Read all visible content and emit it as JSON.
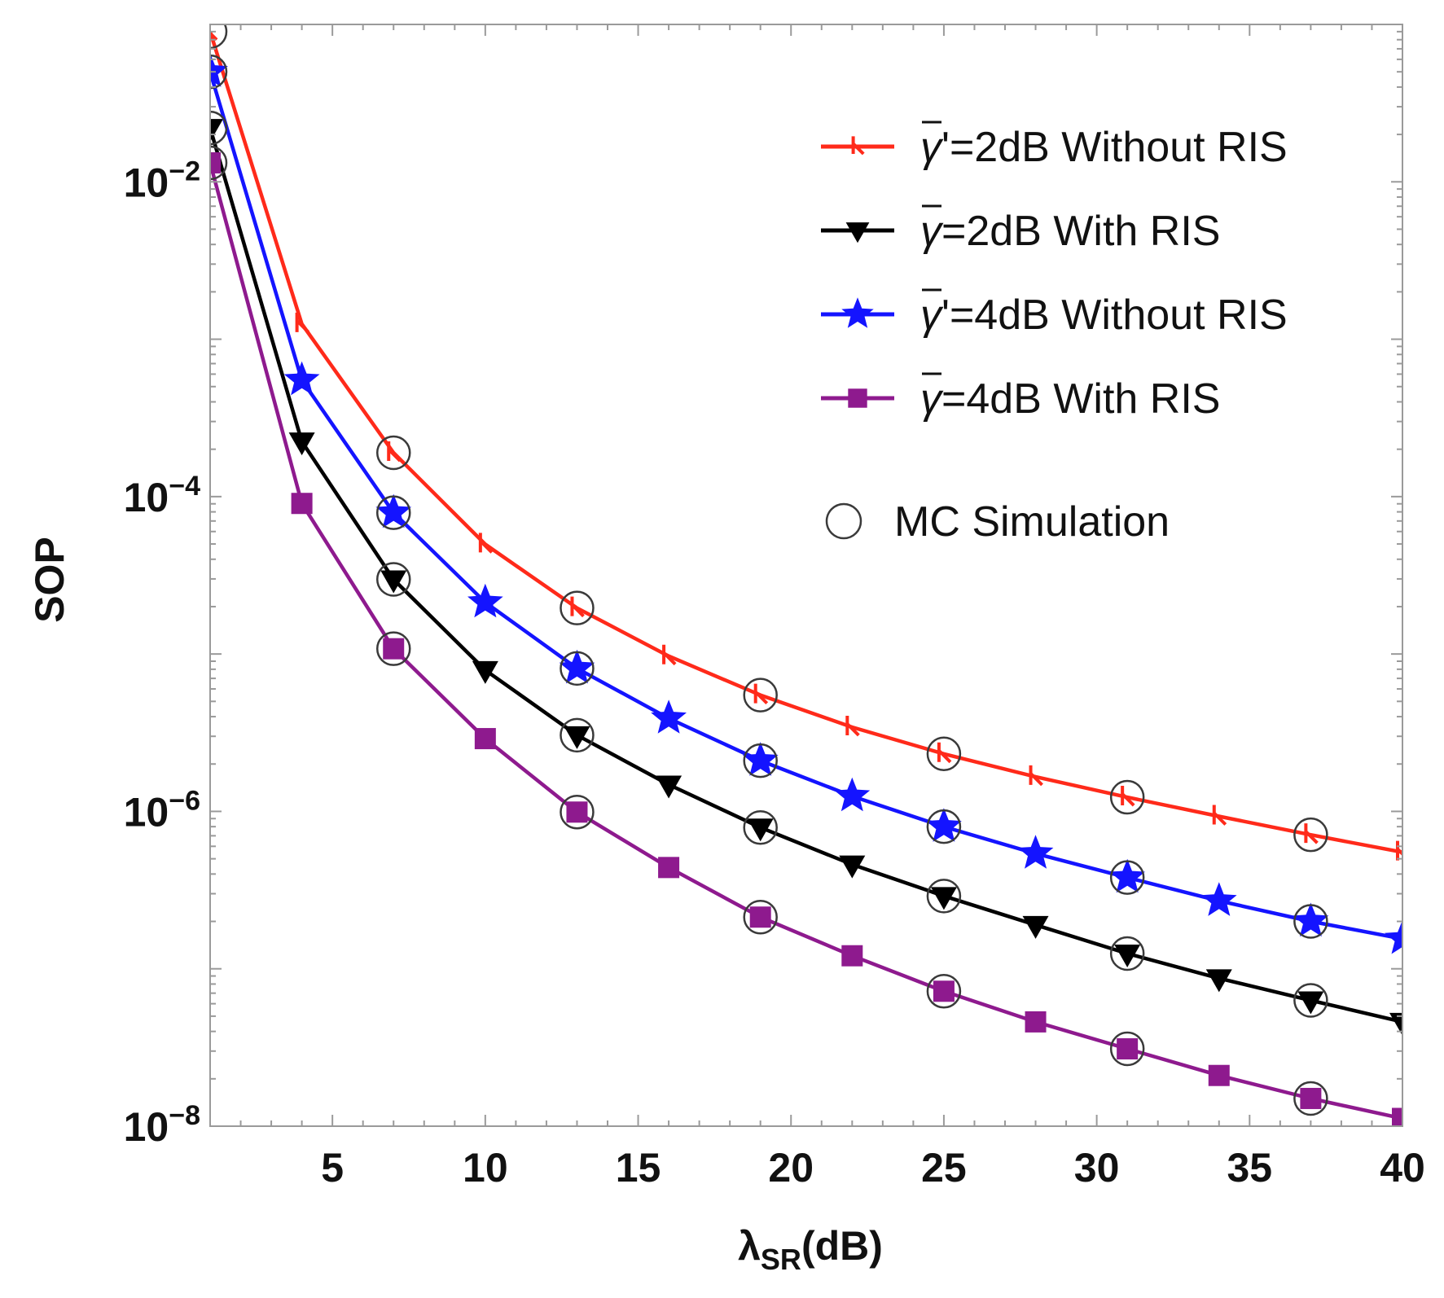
{
  "chart_data": {
    "type": "line",
    "title": "",
    "xlabel": "λSR(dB)",
    "xlabel_main": "λ",
    "xlabel_sub": "SR",
    "xlabel_rest": "(dB)",
    "ylabel": "SOP",
    "y_scale": "log",
    "xlim": [
      1,
      40
    ],
    "ylim": [
      1e-08,
      0.1
    ],
    "grid": false,
    "legend_position": "top-right",
    "x_ticks": [
      5,
      10,
      15,
      20,
      25,
      30,
      35,
      40
    ],
    "x_tick_labels": [
      "5",
      "10",
      "15",
      "20",
      "25",
      "30",
      "35",
      "40"
    ],
    "y_ticks": [
      {
        "value": 0.01,
        "base": "10",
        "exp": "−2"
      },
      {
        "value": 0.0001,
        "base": "10",
        "exp": "−4"
      },
      {
        "value": 1e-06,
        "base": "10",
        "exp": "−6"
      },
      {
        "value": 1e-08,
        "base": "10",
        "exp": "−8"
      }
    ],
    "x": [
      1,
      4,
      7,
      10,
      13,
      16,
      19,
      22,
      25,
      28,
      31,
      34,
      37,
      40
    ],
    "series": [
      {
        "name_pre": "γ",
        "name_prime": "'",
        "name_post": "=2dB Without RIS",
        "color": "#ff2a1a",
        "marker": "tick",
        "values": [
          0.09,
          0.00125,
          0.00019,
          4.98e-05,
          1.96e-05,
          9.7e-06,
          5.48e-06,
          3.43e-06,
          2.32e-06,
          1.66e-06,
          1.23e-06,
          9.3e-07,
          7.1e-07,
          5.5e-07
        ]
      },
      {
        "name_pre": "γ",
        "name_prime": "",
        "name_post": "=2dB With RIS",
        "color": "#000000",
        "marker": "down-triangle",
        "values": [
          0.022,
          0.000224,
          2.98e-05,
          7.9e-06,
          3.05e-06,
          1.48e-06,
          7.9e-07,
          4.6e-07,
          2.9e-07,
          1.9e-07,
          1.25e-07,
          8.7e-08,
          6.3e-08,
          4.6e-08
        ]
      },
      {
        "name_pre": "γ",
        "name_prime": "'",
        "name_post": "=4dB Without RIS",
        "color": "#1414ff",
        "marker": "star",
        "values": [
          0.05,
          0.00055,
          7.9e-05,
          2.13e-05,
          8.1e-06,
          3.9e-06,
          2.1e-06,
          1.25e-06,
          8e-07,
          5.4e-07,
          3.8e-07,
          2.7e-07,
          2e-07,
          1.55e-07
        ]
      },
      {
        "name_pre": "γ",
        "name_prime": "",
        "name_post": "=4dB With RIS",
        "color": "#8e1a8e",
        "marker": "square",
        "values": [
          0.0132,
          9.05e-05,
          1.08e-05,
          2.9e-06,
          9.9e-07,
          4.4e-07,
          2.13e-07,
          1.21e-07,
          7.2e-08,
          4.6e-08,
          3.1e-08,
          2.1e-08,
          1.5e-08,
          1.12e-08
        ]
      }
    ],
    "mc_simulation": {
      "name": "MC Simulation",
      "marker": "circle",
      "x": [
        1,
        7,
        13,
        19,
        25,
        31,
        37
      ],
      "series_indices": [
        0,
        1,
        2,
        3
      ]
    }
  }
}
